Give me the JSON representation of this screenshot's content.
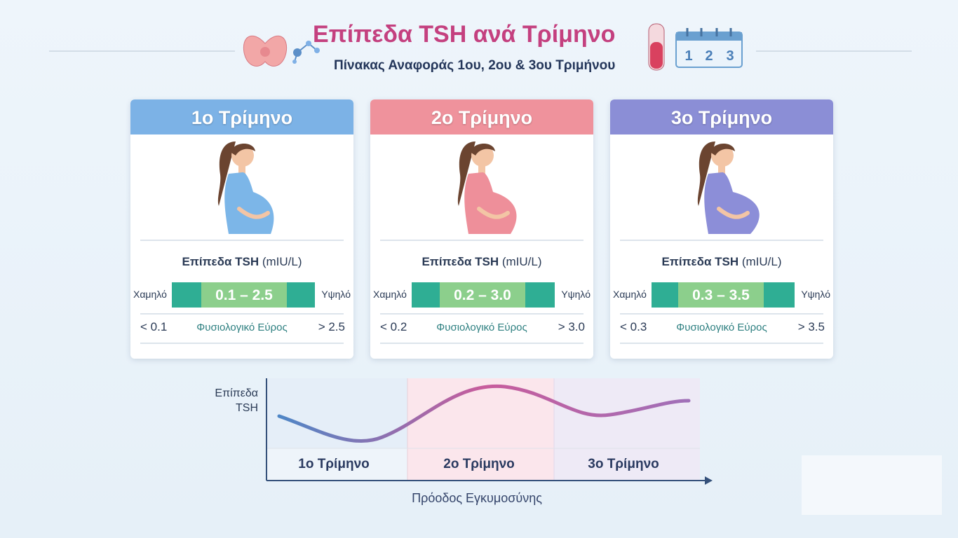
{
  "header": {
    "title": "Επίπεδα TSH ανά Τρίμηνο",
    "subtitle": "Πίνακας Αναφοράς 1ου, 2ου & 3ου Τριμήνου",
    "calendar": [
      "1",
      "2",
      "3"
    ]
  },
  "cards": [
    {
      "title": "1ο Τρίμηνο",
      "tsh_label": "Επίπεδα TSH",
      "tsh_unit": "(mIU/L)",
      "low_label": "Χαμηλό",
      "high_label": "Υψηλό",
      "range": "0.1 – 2.5",
      "below": "< 0.1",
      "normal_label": "Φυσιολογικό Εύρος",
      "above": "> 2.5"
    },
    {
      "title": "2ο Τρίμηνο",
      "tsh_label": "Επίπεδα TSH",
      "tsh_unit": "(mIU/L)",
      "low_label": "Χαμηλό",
      "high_label": "Υψηλό",
      "range": "0.2 – 3.0",
      "below": "< 0.2",
      "normal_label": "Φυσιολογικό Εύρος",
      "above": "> 3.0"
    },
    {
      "title": "3ο Τρίμηνο",
      "tsh_label": "Επίπεδα TSH",
      "tsh_unit": "(mIU/L)",
      "low_label": "Χαμηλό",
      "high_label": "Υψηλό",
      "range": "0.3 – 3.5",
      "below": "< 0.3",
      "normal_label": "Φυσιολογικό Εύρος",
      "above": "> 3.5"
    }
  ],
  "chart": {
    "y_label": [
      "Επίπεδα",
      "TSH"
    ],
    "phases": [
      "1ο Τρίμηνο",
      "2ο Τρίμηνο",
      "3ο Τρίμηνο"
    ],
    "x_label": "Πρόοδος Εγκυμοσύνης"
  }
}
